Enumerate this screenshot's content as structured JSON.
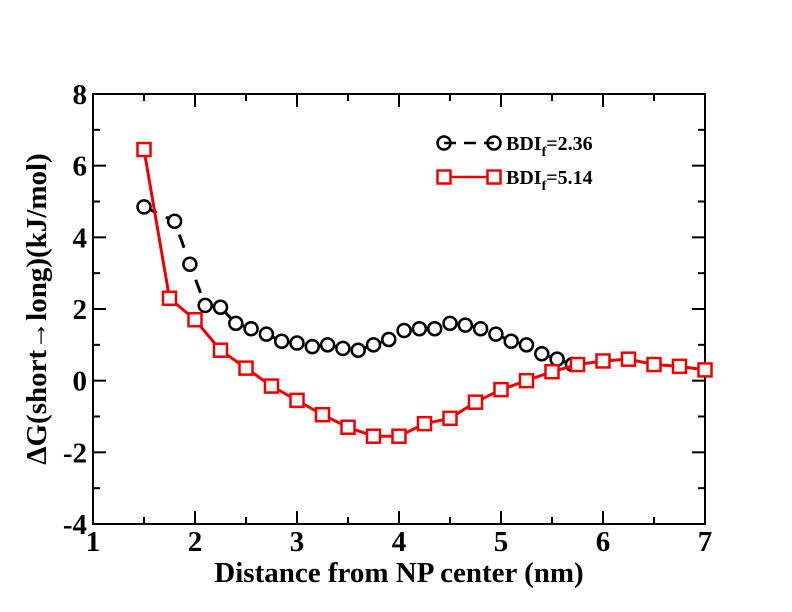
{
  "chart_data": {
    "type": "line",
    "title": "",
    "xlabel": "Distance from NP center (nm)",
    "ylabel": "ΔG(short→long)(kJ/mol)",
    "xlim": [
      1,
      7
    ],
    "ylim": [
      -4,
      8
    ],
    "xticks": [
      "1",
      "2",
      "3",
      "4",
      "5",
      "6",
      "7"
    ],
    "yticks": [
      "-4",
      "-2",
      "0",
      "2",
      "4",
      "6",
      "8"
    ],
    "grid": false,
    "legend_position": "top-right",
    "series": [
      {
        "name": "BDI_f=2.36",
        "legend_main": "BDI",
        "legend_sub": "f",
        "legend_tail": "=2.36",
        "color": "#000000",
        "marker": "circle",
        "line_style": "dashed",
        "x": [
          1.5,
          1.8,
          1.95,
          2.1,
          2.25,
          2.4,
          2.55,
          2.7,
          2.85,
          3.0,
          3.15,
          3.3,
          3.45,
          3.6,
          3.75,
          3.9,
          4.05,
          4.2,
          4.35,
          4.5,
          4.65,
          4.8,
          4.95,
          5.1,
          5.25,
          5.4,
          5.55,
          5.7
        ],
        "y": [
          4.85,
          4.45,
          3.25,
          2.1,
          2.05,
          1.6,
          1.45,
          1.3,
          1.1,
          1.05,
          0.95,
          1.0,
          0.9,
          0.85,
          1.0,
          1.15,
          1.4,
          1.45,
          1.45,
          1.6,
          1.55,
          1.45,
          1.3,
          1.1,
          1.0,
          0.75,
          0.6,
          0.45
        ]
      },
      {
        "name": "BDI_f=5.14",
        "legend_main": "BDI",
        "legend_sub": "f",
        "legend_tail": "=5.14",
        "color": "#ee0000",
        "marker": "square",
        "line_style": "solid",
        "x": [
          1.5,
          1.75,
          2.0,
          2.25,
          2.5,
          2.75,
          3.0,
          3.25,
          3.5,
          3.75,
          4.0,
          4.25,
          4.5,
          4.75,
          5.0,
          5.25,
          5.5,
          5.75,
          6.0,
          6.25,
          6.5,
          6.75,
          7.0
        ],
        "y": [
          6.45,
          2.3,
          1.7,
          0.85,
          0.35,
          -0.15,
          -0.55,
          -0.95,
          -1.3,
          -1.55,
          -1.55,
          -1.2,
          -1.05,
          -0.6,
          -0.25,
          0.0,
          0.25,
          0.45,
          0.55,
          0.6,
          0.45,
          0.4,
          0.3
        ]
      }
    ]
  }
}
